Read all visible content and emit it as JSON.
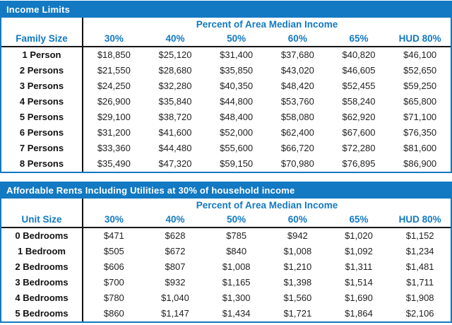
{
  "accent_color": "#1279c2",
  "text_color": "#1f1f1f",
  "tables": [
    {
      "title": "Income Limits",
      "span_header": "Percent of Area Median Income",
      "columns": [
        "Family Size",
        "30%",
        "40%",
        "50%",
        "60%",
        "65%",
        "HUD 80%"
      ],
      "rows": [
        [
          "1 Person",
          "$18,850",
          "$25,120",
          "$31,400",
          "$37,680",
          "$40,820",
          "$46,100"
        ],
        [
          "2 Persons",
          "$21,550",
          "$28,680",
          "$35,850",
          "$43,020",
          "$46,605",
          "$52,650"
        ],
        [
          "3 Persons",
          "$24,250",
          "$32,280",
          "$40,350",
          "$48,420",
          "$52,455",
          "$59,250"
        ],
        [
          "4 Persons",
          "$26,900",
          "$35,840",
          "$44,800",
          "$53,760",
          "$58,240",
          "$65,800"
        ],
        [
          "5 Persons",
          "$29,100",
          "$38,720",
          "$48,400",
          "$58,080",
          "$62,920",
          "$71,100"
        ],
        [
          "6 Persons",
          "$31,200",
          "$41,600",
          "$52,000",
          "$62,400",
          "$67,600",
          "$76,350"
        ],
        [
          "7 Persons",
          "$33,360",
          "$44,480",
          "$55,600",
          "$66,720",
          "$72,280",
          "$81,600"
        ],
        [
          "8 Persons",
          "$35,490",
          "$47,320",
          "$59,150",
          "$70,980",
          "$76,895",
          "$86,900"
        ]
      ]
    },
    {
      "title": "Affordable Rents Including Utilities at 30% of household income",
      "span_header": "Percent of Area Median Income",
      "columns": [
        "Unit Size",
        "30%",
        "40%",
        "50%",
        "60%",
        "65%",
        "HUD 80%"
      ],
      "rows": [
        [
          "0 Bedrooms",
          "$471",
          "$628",
          "$785",
          "$942",
          "$1,020",
          "$1,152"
        ],
        [
          "1 Bedroom",
          "$505",
          "$672",
          "$840",
          "$1,008",
          "$1,092",
          "$1,234"
        ],
        [
          "2 Bedrooms",
          "$606",
          "$807",
          "$1,008",
          "$1,210",
          "$1,311",
          "$1,481"
        ],
        [
          "3 Bedrooms",
          "$700",
          "$932",
          "$1,165",
          "$1,398",
          "$1,514",
          "$1,711"
        ],
        [
          "4 Bedrooms",
          "$780",
          "$1,040",
          "$1,300",
          "$1,560",
          "$1,690",
          "$1,908"
        ],
        [
          "5 Bedrooms",
          "$860",
          "$1,147",
          "$1,434",
          "$1,721",
          "$1,864",
          "$2,106"
        ]
      ]
    }
  ]
}
